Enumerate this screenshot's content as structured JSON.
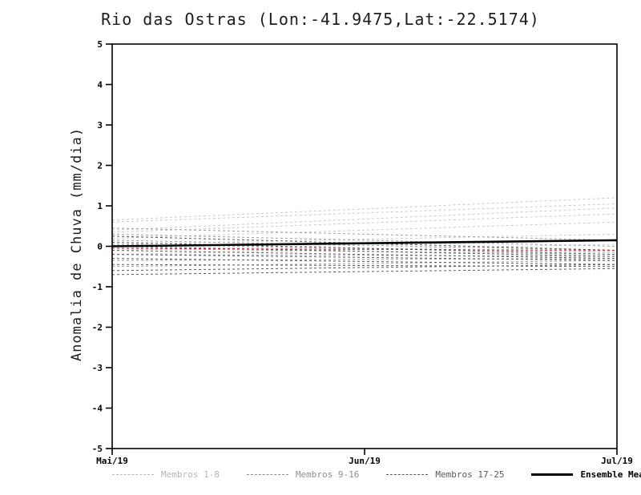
{
  "title": "Rio das Ostras (Lon:-41.9475,Lat:-22.5174)",
  "ylabel": "Anomalia de Chuva (mm/dia)",
  "chart_data": {
    "type": "line",
    "title": "Rio das Ostras (Lon:-41.9475,Lat:-22.5174)",
    "xlabel": "",
    "ylabel": "Anomalia de Chuva (mm/dia)",
    "ylim": [
      -5,
      5
    ],
    "y_ticks": [
      5,
      4,
      3,
      2,
      1,
      0,
      -1,
      -2,
      -3,
      -4,
      -5
    ],
    "x_tick_labels": [
      "Mai/19",
      "Jun/19",
      "Jul/19"
    ],
    "x_tick_positions": [
      0,
      0.5,
      1
    ],
    "grid": false,
    "legend_position": "bottom",
    "groups": [
      {
        "name": "Membros 1-8",
        "color": "#c9c9c9",
        "line_style": "dashed",
        "members": [
          [
            0.65,
            1.2
          ],
          [
            0.6,
            1.05
          ],
          [
            0.4,
            0.95
          ],
          [
            0.35,
            0.8
          ],
          [
            0.2,
            0.6
          ],
          [
            0.05,
            0.3
          ],
          [
            -0.1,
            0.15
          ],
          [
            -0.2,
            0.05
          ]
        ]
      },
      {
        "name": "Membros 9-16",
        "color": "#9e9e9e",
        "line_style": "dashed",
        "members": [
          [
            0.45,
            0.15
          ],
          [
            0.3,
            0.0
          ],
          [
            0.15,
            -0.1
          ],
          [
            0.05,
            -0.15
          ],
          [
            -0.05,
            -0.2
          ],
          [
            -0.2,
            -0.25
          ],
          [
            -0.35,
            -0.3
          ],
          [
            -0.5,
            -0.35
          ]
        ]
      },
      {
        "name": "Membros 17-25",
        "color": "#5a5a5a",
        "line_style": "dashed",
        "members": [
          [
            0.25,
            -0.1
          ],
          [
            0.1,
            -0.2
          ],
          [
            0.0,
            -0.25
          ],
          [
            -0.1,
            -0.3
          ],
          [
            -0.2,
            -0.35
          ],
          [
            -0.3,
            -0.45
          ],
          [
            -0.45,
            -0.5
          ],
          [
            -0.6,
            -0.45
          ],
          [
            -0.7,
            -0.55
          ]
        ]
      }
    ],
    "extra_line": {
      "name": "red-dashed-line",
      "color": "#a83232",
      "line_style": "dashed",
      "values": [
        -0.05,
        -0.1
      ]
    },
    "mean": {
      "name": "Ensemble Mean",
      "color": "#000000",
      "line_style": "solid",
      "values": [
        0.0,
        0.15
      ]
    }
  },
  "legend": [
    {
      "label": "Membros 1-8",
      "color": "#b5b5b5",
      "dashed": true
    },
    {
      "label": "Membros 9-16",
      "color": "#8f8f8f",
      "dashed": true
    },
    {
      "label": "Membros 17-25",
      "color": "#5a5a5a",
      "dashed": true
    },
    {
      "label": "Ensemble Mean",
      "color": "#000000",
      "dashed": false
    }
  ]
}
